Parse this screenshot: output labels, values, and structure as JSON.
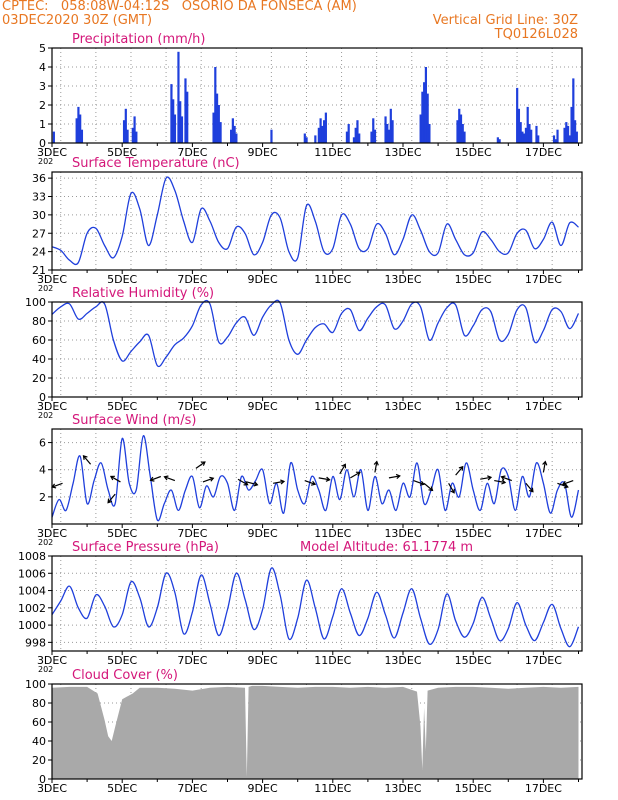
{
  "header": {
    "line1": "CPTEC:   058:08W-04:12S   OSORIO DA FONSECA (AM)",
    "line2_left": "03DEC2020 30Z (GMT)",
    "line2_right": "Vertical Grid Line: 30Z",
    "line3_right": "TQ0126L028",
    "model_altitude": "Model Altitude: 61.1774 m"
  },
  "colors": {
    "header": "#e87722",
    "title": "#d4177a",
    "line": "#1f3fdc",
    "bar": "#1f3fdc",
    "cloud": "#a9a9a9",
    "grid": "#9a9a9a"
  },
  "x_axis": {
    "start_label": "3DEC",
    "end_day": 18.1,
    "tick_labels": [
      "3DEC",
      "5DEC",
      "7DEC",
      "9DEC",
      "11DEC",
      "13DEC",
      "15DEC",
      "17DEC"
    ],
    "tick_days": [
      3,
      5,
      7,
      9,
      11,
      13,
      15,
      17
    ],
    "year_stub": "202"
  },
  "chart_data": [
    {
      "type": "bar",
      "title": "Precipitation (mm/h)",
      "ylim": [
        0,
        5
      ],
      "yticks": [
        0,
        1,
        2,
        3,
        4,
        5
      ],
      "x": [
        3.05,
        3.7,
        3.75,
        3.8,
        3.85,
        5.05,
        5.1,
        5.15,
        5.3,
        5.35,
        5.4,
        6.4,
        6.45,
        6.5,
        6.6,
        6.65,
        6.7,
        6.8,
        6.85,
        7.6,
        7.65,
        7.7,
        7.75,
        7.8,
        8.1,
        8.15,
        8.2,
        8.25,
        9.25,
        10.2,
        10.25,
        10.5,
        10.6,
        10.65,
        10.7,
        10.75,
        10.8,
        11.4,
        11.45,
        11.6,
        11.65,
        11.7,
        11.75,
        12.1,
        12.15,
        12.2,
        12.5,
        12.55,
        12.6,
        12.65,
        12.7,
        13.5,
        13.55,
        13.6,
        13.65,
        13.7,
        13.75,
        14.55,
        14.6,
        14.65,
        14.7,
        14.75,
        15.7,
        15.75,
        16.25,
        16.3,
        16.35,
        16.4,
        16.45,
        16.5,
        16.55,
        16.6,
        16.65,
        16.8,
        16.85,
        17.3,
        17.35,
        17.4,
        17.6,
        17.65,
        17.7,
        17.75,
        17.8,
        17.85,
        17.9,
        17.95
      ],
      "values": [
        0.6,
        1.3,
        1.9,
        1.5,
        0.7,
        1.2,
        1.8,
        0.7,
        0.8,
        1.4,
        0.6,
        3.1,
        2.3,
        1.5,
        4.8,
        2.2,
        1.4,
        3.4,
        2.7,
        1.6,
        4.0,
        2.6,
        2.0,
        1.1,
        0.7,
        1.3,
        0.9,
        0.5,
        0.7,
        0.5,
        0.3,
        0.4,
        0.8,
        1.3,
        0.9,
        1.2,
        1.6,
        0.6,
        1.0,
        0.3,
        0.8,
        1.2,
        0.5,
        0.6,
        1.3,
        0.7,
        1.4,
        1.0,
        0.7,
        1.8,
        1.2,
        1.5,
        2.7,
        3.2,
        4.0,
        2.6,
        1.0,
        1.2,
        1.8,
        1.5,
        1.0,
        0.6,
        0.3,
        0.2,
        2.9,
        1.8,
        1.1,
        0.6,
        0.5,
        0.8,
        1.9,
        1.0,
        0.7,
        0.9,
        0.4,
        0.4,
        0.2,
        0.7,
        0.8,
        1.1,
        0.9,
        0.4,
        1.9,
        3.4,
        1.2,
        0.6
      ]
    },
    {
      "type": "line",
      "title": "Surface Temperature (nC)",
      "ylim": [
        21,
        37
      ],
      "yticks": [
        21,
        24,
        27,
        30,
        33,
        36
      ],
      "x": [
        3.0,
        3.25,
        3.5,
        3.75,
        4.0,
        4.25,
        4.5,
        4.75,
        5.0,
        5.25,
        5.5,
        5.75,
        6.0,
        6.25,
        6.5,
        6.75,
        7.0,
        7.25,
        7.5,
        7.75,
        8.0,
        8.25,
        8.5,
        8.75,
        9.0,
        9.25,
        9.5,
        9.75,
        10.0,
        10.25,
        10.5,
        10.75,
        11.0,
        11.25,
        11.5,
        11.75,
        12.0,
        12.25,
        12.5,
        12.75,
        13.0,
        13.25,
        13.5,
        13.75,
        14.0,
        14.25,
        14.5,
        14.75,
        15.0,
        15.25,
        15.5,
        15.75,
        16.0,
        16.25,
        16.5,
        16.75,
        17.0,
        17.25,
        17.5,
        17.75,
        18.0
      ],
      "values": [
        24.8,
        24.2,
        22.6,
        22.2,
        27.0,
        27.8,
        25.0,
        23.0,
        26.5,
        33.5,
        31.0,
        25.0,
        30.0,
        36.0,
        34.0,
        29.0,
        25.5,
        31.0,
        29.0,
        25.5,
        24.5,
        28.0,
        27.0,
        23.5,
        25.5,
        30.0,
        29.5,
        24.0,
        23.0,
        31.5,
        29.0,
        24.0,
        24.5,
        30.0,
        28.5,
        24.5,
        24.5,
        28.5,
        27.0,
        23.5,
        26.0,
        30.0,
        27.5,
        24.0,
        23.8,
        28.5,
        26.0,
        23.5,
        23.8,
        27.2,
        26.0,
        24.0,
        23.8,
        27.0,
        27.5,
        24.5,
        26.0,
        28.8,
        25.0,
        28.7,
        28.0
      ]
    },
    {
      "type": "line",
      "title": "Relative Humidity (%)",
      "ylim": [
        0,
        100
      ],
      "yticks": [
        0,
        20,
        40,
        60,
        80,
        100
      ],
      "x": [
        3.0,
        3.25,
        3.5,
        3.75,
        4.0,
        4.25,
        4.5,
        4.75,
        5.0,
        5.25,
        5.5,
        5.75,
        6.0,
        6.25,
        6.5,
        6.75,
        7.0,
        7.25,
        7.5,
        7.75,
        8.0,
        8.25,
        8.5,
        8.75,
        9.0,
        9.25,
        9.5,
        9.75,
        10.0,
        10.25,
        10.5,
        10.75,
        11.0,
        11.25,
        11.5,
        11.75,
        12.0,
        12.25,
        12.5,
        12.75,
        13.0,
        13.25,
        13.5,
        13.75,
        14.0,
        14.25,
        14.5,
        14.75,
        15.0,
        15.25,
        15.5,
        15.75,
        16.0,
        16.25,
        16.5,
        16.75,
        17.0,
        17.25,
        17.5,
        17.75,
        18.0
      ],
      "values": [
        87,
        95,
        98,
        82,
        88,
        95,
        98,
        60,
        38,
        48,
        58,
        65,
        33,
        42,
        55,
        62,
        75,
        97,
        98,
        58,
        63,
        78,
        84,
        65,
        84,
        97,
        99,
        60,
        45,
        60,
        73,
        77,
        68,
        88,
        92,
        70,
        83,
        95,
        97,
        72,
        80,
        98,
        95,
        60,
        78,
        94,
        97,
        65,
        75,
        92,
        90,
        60,
        66,
        92,
        94,
        58,
        70,
        92,
        90,
        72,
        88
      ]
    },
    {
      "type": "line",
      "title": "Surface Wind (m/s)",
      "ylim": [
        0,
        7
      ],
      "yticks": [
        2,
        4,
        6
      ],
      "x": [
        3.0,
        3.2,
        3.4,
        3.6,
        3.8,
        4.0,
        4.2,
        4.4,
        4.6,
        4.8,
        5.0,
        5.2,
        5.4,
        5.6,
        5.8,
        6.0,
        6.2,
        6.4,
        6.6,
        6.8,
        7.0,
        7.2,
        7.4,
        7.6,
        7.8,
        8.0,
        8.2,
        8.4,
        8.6,
        8.8,
        9.0,
        9.2,
        9.4,
        9.6,
        9.8,
        10.0,
        10.2,
        10.4,
        10.6,
        10.8,
        11.0,
        11.2,
        11.4,
        11.6,
        11.8,
        12.0,
        12.2,
        12.4,
        12.6,
        12.8,
        13.0,
        13.2,
        13.4,
        13.6,
        13.8,
        14.0,
        14.2,
        14.4,
        14.6,
        14.8,
        15.0,
        15.2,
        15.4,
        15.6,
        15.8,
        16.0,
        16.2,
        16.4,
        16.6,
        16.8,
        17.0,
        17.2,
        17.4,
        17.6,
        17.8,
        18.0
      ],
      "values": [
        0.5,
        1.8,
        1.0,
        3.0,
        5.0,
        1.5,
        3.2,
        4.5,
        2.5,
        1.5,
        6.3,
        3.0,
        2.5,
        6.5,
        3.5,
        0.3,
        1.5,
        2.5,
        1.0,
        2.5,
        3.5,
        1.2,
        2.8,
        2.0,
        3.5,
        3.0,
        1.0,
        3.5,
        2.5,
        3.2,
        4.0,
        1.5,
        3.0,
        0.8,
        4.5,
        2.5,
        1.5,
        3.5,
        2.5,
        1.0,
        3.5,
        1.8,
        4.0,
        2.0,
        4.0,
        1.0,
        3.5,
        1.5,
        2.5,
        1.0,
        3.0,
        2.0,
        4.5,
        1.5,
        2.5,
        4.0,
        1.0,
        3.0,
        2.0,
        4.5,
        2.5,
        1.0,
        3.0,
        1.5,
        4.0,
        3.5,
        1.0,
        3.5,
        2.0,
        4.5,
        3.0,
        0.8,
        2.5,
        3.0,
        0.5,
        2.5
      ],
      "vectors": [
        {
          "x": 3.3,
          "y": 3.0,
          "angle": 200
        },
        {
          "x": 4.1,
          "y": 4.4,
          "angle": 130
        },
        {
          "x": 4.8,
          "y": 2.2,
          "angle": 230
        },
        {
          "x": 4.95,
          "y": 3.1,
          "angle": 150
        },
        {
          "x": 6.1,
          "y": 3.5,
          "angle": 200
        },
        {
          "x": 6.5,
          "y": 3.2,
          "angle": 160
        },
        {
          "x": 7.1,
          "y": 4.1,
          "angle": 35
        },
        {
          "x": 7.3,
          "y": 3.1,
          "angle": 20
        },
        {
          "x": 8.3,
          "y": 3.3,
          "angle": -30
        },
        {
          "x": 8.55,
          "y": 3.1,
          "angle": -15
        },
        {
          "x": 9.3,
          "y": 3.0,
          "angle": 10
        },
        {
          "x": 10.2,
          "y": 3.2,
          "angle": -20
        },
        {
          "x": 10.6,
          "y": 3.4,
          "angle": -10
        },
        {
          "x": 11.2,
          "y": 3.7,
          "angle": 60
        },
        {
          "x": 11.5,
          "y": 3.4,
          "angle": 30
        },
        {
          "x": 12.2,
          "y": 3.8,
          "angle": 80
        },
        {
          "x": 12.6,
          "y": 3.4,
          "angle": 10
        },
        {
          "x": 13.3,
          "y": 3.2,
          "angle": -20
        },
        {
          "x": 13.6,
          "y": 3.0,
          "angle": -40
        },
        {
          "x": 14.3,
          "y": 3.0,
          "angle": -60
        },
        {
          "x": 14.5,
          "y": 3.6,
          "angle": 50
        },
        {
          "x": 15.2,
          "y": 3.3,
          "angle": 10
        },
        {
          "x": 15.6,
          "y": 3.2,
          "angle": -10
        },
        {
          "x": 16.1,
          "y": 3.2,
          "angle": 160
        },
        {
          "x": 16.5,
          "y": 3.0,
          "angle": -50
        },
        {
          "x": 17.0,
          "y": 3.8,
          "angle": 80
        },
        {
          "x": 17.4,
          "y": 3.0,
          "angle": -20
        },
        {
          "x": 17.85,
          "y": 3.2,
          "angle": 200
        }
      ]
    },
    {
      "type": "line",
      "title": "Surface Pressure (hPa)",
      "ylim": [
        997,
        1008
      ],
      "yticks": [
        998,
        1000,
        1002,
        1004,
        1006,
        1008
      ],
      "x": [
        3.0,
        3.25,
        3.5,
        3.75,
        4.0,
        4.25,
        4.5,
        4.75,
        5.0,
        5.25,
        5.5,
        5.75,
        6.0,
        6.25,
        6.5,
        6.75,
        7.0,
        7.25,
        7.5,
        7.75,
        8.0,
        8.25,
        8.5,
        8.75,
        9.0,
        9.25,
        9.5,
        9.75,
        10.0,
        10.25,
        10.5,
        10.75,
        11.0,
        11.25,
        11.5,
        11.75,
        12.0,
        12.25,
        12.5,
        12.75,
        13.0,
        13.25,
        13.5,
        13.75,
        14.0,
        14.25,
        14.5,
        14.75,
        15.0,
        15.25,
        15.5,
        15.75,
        16.0,
        16.25,
        16.5,
        16.75,
        17.0,
        17.25,
        17.5,
        17.75,
        18.0
      ],
      "values": [
        1001.2,
        1002.8,
        1004.5,
        1002.0,
        1000.8,
        1003.5,
        1002.2,
        999.8,
        1001.2,
        1005.0,
        1003.2,
        999.8,
        1002.0,
        1006.0,
        1003.8,
        999.0,
        1001.5,
        1005.8,
        1002.5,
        998.8,
        1001.8,
        1006.0,
        1003.0,
        999.5,
        1001.8,
        1006.6,
        1003.5,
        998.4,
        1000.8,
        1005.2,
        1002.0,
        998.4,
        1001.0,
        1004.2,
        1001.4,
        998.8,
        1000.8,
        1003.8,
        1001.2,
        998.5,
        1001.4,
        1004.2,
        1000.8,
        997.8,
        999.5,
        1003.6,
        1000.5,
        998.6,
        1000.2,
        1003.2,
        1000.8,
        998.2,
        999.6,
        1002.6,
        1000.0,
        998.2,
        1000.3,
        1002.4,
        999.6,
        997.5,
        999.8
      ]
    },
    {
      "type": "area",
      "title": "Cloud Cover (%)",
      "ylim": [
        0,
        100
      ],
      "yticks": [
        0,
        20,
        40,
        60,
        80,
        100
      ],
      "x": [
        3.0,
        3.5,
        4.0,
        4.3,
        4.5,
        4.6,
        4.7,
        4.8,
        5.0,
        5.3,
        5.5,
        6.0,
        6.5,
        7.0,
        7.5,
        8.0,
        8.5,
        8.55,
        8.6,
        8.7,
        9.0,
        9.5,
        10.0,
        10.5,
        11.0,
        11.5,
        12.0,
        12.5,
        13.0,
        13.4,
        13.5,
        13.55,
        13.6,
        13.65,
        13.7,
        14.0,
        14.5,
        15.0,
        15.5,
        16.0,
        16.5,
        17.0,
        17.5,
        18.0
      ],
      "values": [
        96,
        97,
        97,
        90,
        62,
        45,
        40,
        55,
        84,
        90,
        96,
        96,
        95,
        93,
        96,
        97,
        96,
        2,
        97,
        98,
        98,
        97,
        96,
        97,
        97,
        96,
        97,
        96,
        97,
        92,
        55,
        10,
        75,
        30,
        93,
        96,
        97,
        97,
        96,
        95,
        96,
        97,
        96,
        97
      ]
    }
  ]
}
